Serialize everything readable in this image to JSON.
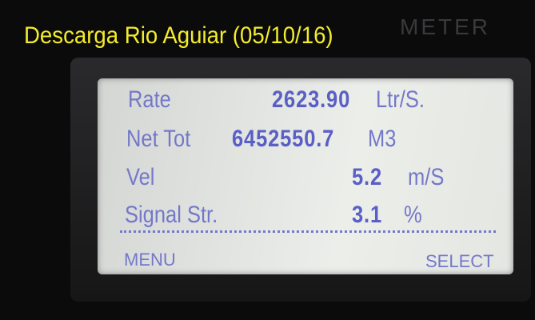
{
  "caption": {
    "title": "Descarga Rio Aguiar (05/10/16)"
  },
  "device": {
    "label": "METER"
  },
  "display": {
    "rows": [
      {
        "label": "Rate",
        "value": "2623.90",
        "unit": "Ltr/S."
      },
      {
        "label": "Net Tot",
        "value": "6452550.7",
        "unit": "M3"
      },
      {
        "label": "Vel",
        "value": "5.2",
        "unit": "m/S"
      },
      {
        "label": "Signal Str.",
        "value": "3.1",
        "unit": "%"
      }
    ],
    "softkeys": {
      "left": "MENU",
      "right": "SELECT"
    }
  }
}
